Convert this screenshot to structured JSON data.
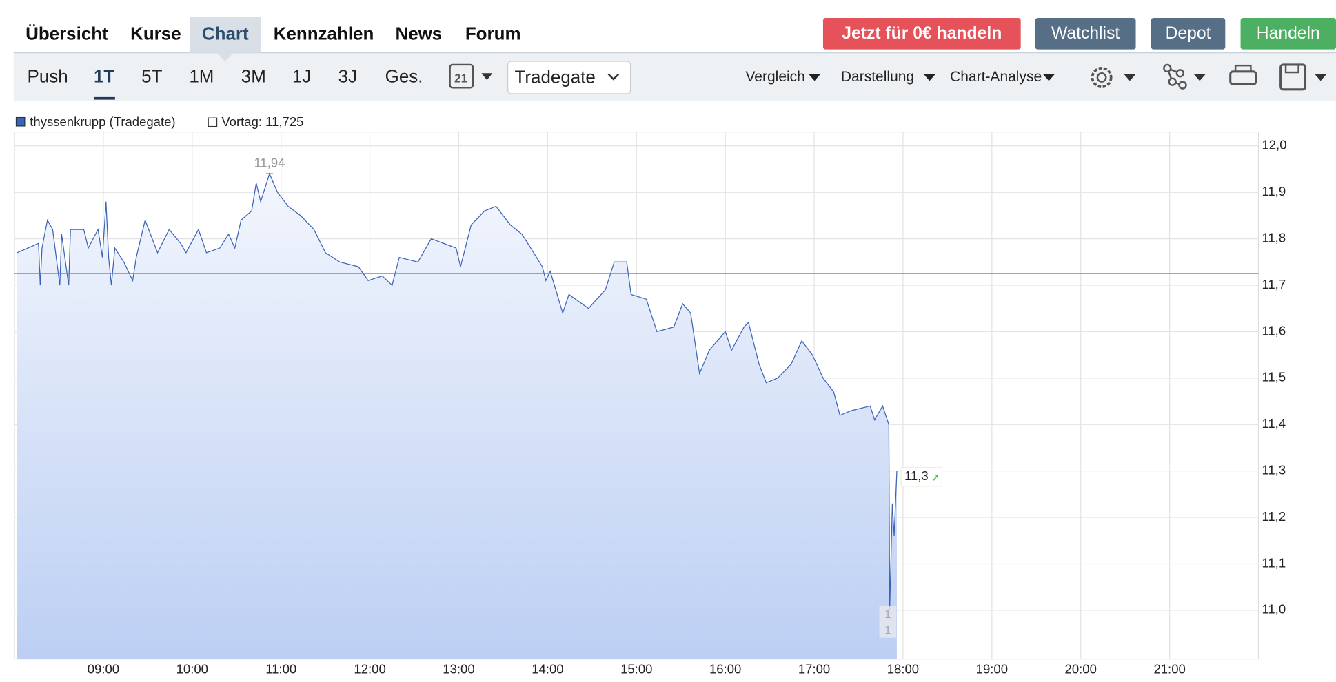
{
  "nav": {
    "tabs": [
      "Übersicht",
      "Kurse",
      "Chart",
      "Kennzahlen",
      "News",
      "Forum"
    ],
    "active": "Chart",
    "buttons": [
      {
        "label": "Jetzt für 0€ handeln",
        "color": "#e5525a"
      },
      {
        "label": "Watchlist",
        "color": "#566f86"
      },
      {
        "label": "Depot",
        "color": "#566f86"
      },
      {
        "label": "Handeln",
        "color": "#4caf62"
      }
    ]
  },
  "toolbar": {
    "ranges": [
      "Push",
      "1T",
      "5T",
      "1M",
      "3M",
      "1J",
      "3J",
      "Ges."
    ],
    "active": "1T",
    "calendar_day": "21",
    "exchange": "Tradegate",
    "menus": [
      "Vergleich",
      "Darstellung",
      "Chart-Analyse"
    ]
  },
  "chart_data": {
    "type": "line",
    "x": [
      8.03,
      8.27,
      8.29,
      8.31,
      8.37,
      8.43,
      8.51,
      8.53,
      8.61,
      8.63,
      8.78,
      8.83,
      8.94,
      8.99,
      9.03,
      9.06,
      9.09,
      9.13,
      9.23,
      9.33,
      9.37,
      9.47,
      9.61,
      9.74,
      9.87,
      9.93,
      10.07,
      10.16,
      10.31,
      10.41,
      10.48,
      10.55,
      10.67,
      10.72,
      10.77,
      10.87,
      10.96,
      11.08,
      11.22,
      11.37,
      11.5,
      11.66,
      11.87,
      11.98,
      12.14,
      12.25,
      12.33,
      12.54,
      12.69,
      12.83,
      12.97,
      13.02,
      13.14,
      13.29,
      13.42,
      13.58,
      13.71,
      13.81,
      13.94,
      13.98,
      14.03,
      14.17,
      14.24,
      14.46,
      14.65,
      14.75,
      14.89,
      14.94,
      15.11,
      15.23,
      15.42,
      15.52,
      15.61,
      15.71,
      15.82,
      16.0,
      16.07,
      16.21,
      16.26,
      16.38,
      16.46,
      16.59,
      16.74,
      16.86,
      16.98,
      17.1,
      17.22,
      17.29,
      17.42,
      17.63,
      17.68,
      17.77,
      17.84,
      17.85,
      17.88,
      17.9,
      17.93
    ],
    "series": [
      {
        "name": "thyssenkrupp (Tradegate)",
        "color": "#3a63b8",
        "values": [
          11.77,
          11.79,
          11.7,
          11.78,
          11.84,
          11.82,
          11.7,
          11.81,
          11.7,
          11.82,
          11.82,
          11.78,
          11.82,
          11.76,
          11.88,
          11.76,
          11.7,
          11.78,
          11.75,
          11.71,
          11.76,
          11.84,
          11.77,
          11.82,
          11.79,
          11.77,
          11.82,
          11.77,
          11.78,
          11.81,
          11.78,
          11.84,
          11.86,
          11.92,
          11.88,
          11.94,
          11.9,
          11.87,
          11.85,
          11.82,
          11.77,
          11.75,
          11.74,
          11.71,
          11.72,
          11.7,
          11.76,
          11.75,
          11.8,
          11.79,
          11.78,
          11.74,
          11.83,
          11.86,
          11.87,
          11.83,
          11.81,
          11.78,
          11.74,
          11.71,
          11.73,
          11.64,
          11.68,
          11.65,
          11.69,
          11.75,
          11.75,
          11.68,
          11.67,
          11.6,
          11.61,
          11.66,
          11.64,
          11.51,
          11.56,
          11.6,
          11.56,
          11.61,
          11.62,
          11.53,
          11.49,
          11.5,
          11.53,
          11.58,
          11.55,
          11.5,
          11.47,
          11.42,
          11.43,
          11.44,
          11.41,
          11.44,
          11.4,
          11.0,
          11.23,
          11.16,
          11.3
        ]
      }
    ],
    "reference": {
      "label": "Vortag: 11,725",
      "value": 11.725,
      "color": "#888888"
    },
    "annotations": [
      {
        "label": "11,94",
        "x": 10.87,
        "value": 11.94
      },
      {
        "label": "11,3",
        "x": 17.93,
        "value": 11.3
      }
    ],
    "min_marker_texts": [
      "1",
      "1"
    ],
    "xlim": [
      8,
      22
    ],
    "xticks": [
      {
        "value": 9,
        "label": "09:00"
      },
      {
        "value": 10,
        "label": "10:00"
      },
      {
        "value": 11,
        "label": "11:00"
      },
      {
        "value": 12,
        "label": "12:00"
      },
      {
        "value": 13,
        "label": "13:00"
      },
      {
        "value": 14,
        "label": "14:00"
      },
      {
        "value": 15,
        "label": "15:00"
      },
      {
        "value": 16,
        "label": "16:00"
      },
      {
        "value": 17,
        "label": "17:00"
      },
      {
        "value": 18,
        "label": "18:00"
      },
      {
        "value": 19,
        "label": "19:00"
      },
      {
        "value": 20,
        "label": "20:00"
      },
      {
        "value": 21,
        "label": "21:00"
      }
    ],
    "ylim": [
      10.895,
      12.03
    ],
    "yticks": [
      {
        "value": 11.0,
        "label": "11,0"
      },
      {
        "value": 11.1,
        "label": "11,1"
      },
      {
        "value": 11.2,
        "label": "11,2"
      },
      {
        "value": 11.3,
        "label": "11,3"
      },
      {
        "value": 11.4,
        "label": "11,4"
      },
      {
        "value": 11.5,
        "label": "11,5"
      },
      {
        "value": 11.6,
        "label": "11,6"
      },
      {
        "value": 11.7,
        "label": "11,7"
      },
      {
        "value": 11.8,
        "label": "11,8"
      },
      {
        "value": 11.9,
        "label": "11,9"
      },
      {
        "value": 12.0,
        "label": "12,0"
      }
    ],
    "grid": true
  }
}
